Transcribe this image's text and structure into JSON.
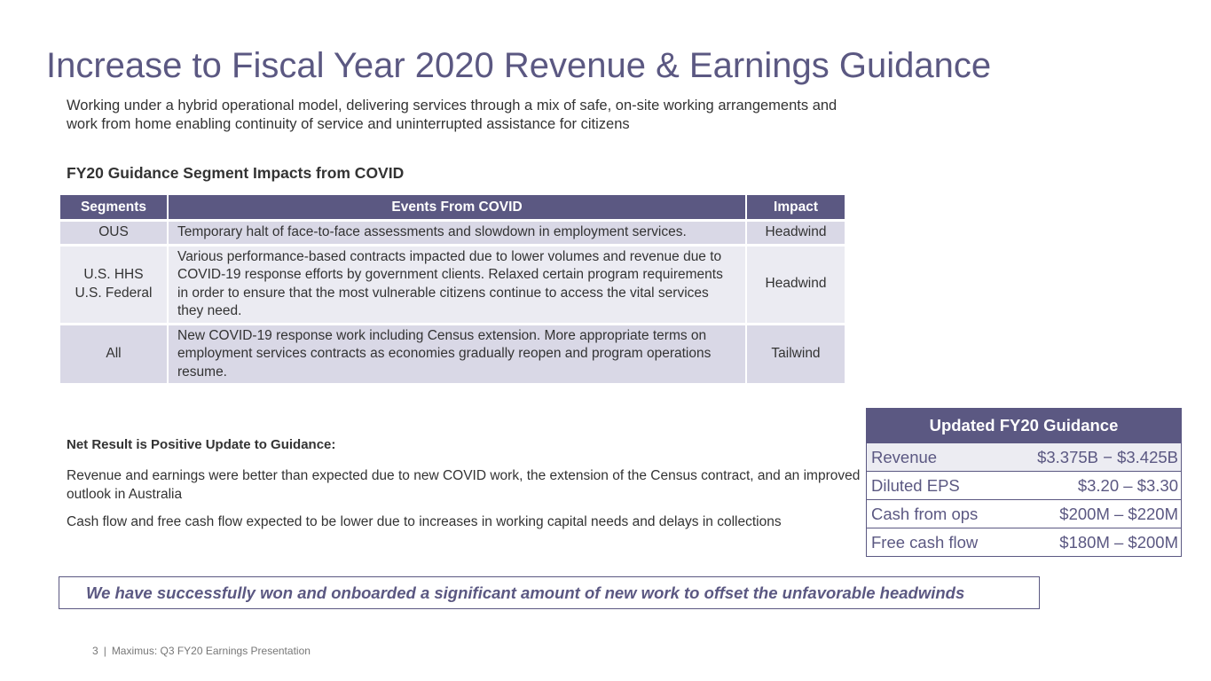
{
  "header": {
    "title": "Increase to Fiscal Year 2020 Revenue & Earnings Guidance",
    "subtitle": "Working under a hybrid operational model, delivering services through a mix of safe, on-site working arrangements and work from home enabling continuity of service and uninterrupted assistance for citizens"
  },
  "table": {
    "title": "FY20 Guidance Segment Impacts from COVID",
    "columns": [
      "Segments",
      "Events From COVID",
      "Impact"
    ],
    "rows": [
      [
        "OUS",
        "Temporary halt of face-to-face assessments and slowdown in employment services.",
        "Headwind"
      ],
      [
        "U.S. HHS\nU.S. Federal",
        "Various performance-based contracts impacted due to lower volumes and revenue due to COVID-19 response efforts by government clients. Relaxed certain program requirements in order to ensure that the most vulnerable citizens continue to access the vital services they need.",
        "Headwind"
      ],
      [
        "All",
        "New COVID-19 response work including Census extension. More appropriate terms on employment services contracts as economies gradually reopen and program operations resume.",
        "Tailwind"
      ]
    ]
  },
  "net_result": {
    "heading": "Net Result is Positive Update to Guidance:",
    "paragraphs": [
      "Revenue and earnings were better than expected due to new COVID work, the extension of the Census contract, and an improved outlook in Australia",
      "Cash flow and free cash flow expected to be lower due to increases in working capital needs and delays in collections"
    ]
  },
  "guidance": {
    "title": "Updated FY20 Guidance",
    "rows": [
      [
        "Revenue",
        "$3.375B − $3.425B"
      ],
      [
        "Diluted EPS",
        "$3.20 – $3.30"
      ],
      [
        "Cash from ops",
        "$200M – $220M"
      ],
      [
        "Free cash flow",
        "$180M – $200M"
      ]
    ]
  },
  "callout": "We have successfully won and onboarded a significant amount of new work to offset the unfavorable headwinds",
  "footer": {
    "page": "3",
    "separator": "|",
    "text": "Maximus: Q3 FY20 Earnings Presentation"
  }
}
